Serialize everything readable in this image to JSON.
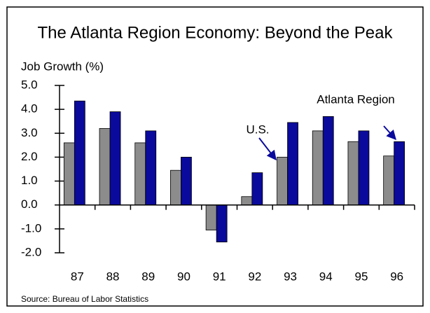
{
  "chart_data": {
    "type": "bar",
    "title": "The Atlanta Region Economy: Beyond the Peak",
    "y_label": "Job Growth (%)",
    "source": "Source:  Bureau of Labor Statistics",
    "categories": [
      "87",
      "88",
      "89",
      "90",
      "91",
      "92",
      "93",
      "94",
      "95",
      "96"
    ],
    "series": [
      {
        "name": "U.S.",
        "color": "#8c8c8c",
        "values": [
          2.6,
          3.2,
          2.6,
          1.45,
          -1.05,
          0.35,
          2.0,
          3.1,
          2.65,
          2.05
        ]
      },
      {
        "name": "Atlanta Region",
        "color": "#0a0a9c",
        "values": [
          4.35,
          3.9,
          3.1,
          2.0,
          -1.55,
          1.35,
          3.45,
          3.7,
          3.1,
          2.65
        ]
      }
    ],
    "ylim": [
      -2,
      5
    ],
    "yticks": [
      {
        "value": -2,
        "label": "-2.0"
      },
      {
        "value": -1,
        "label": "-1.0"
      },
      {
        "value": 0,
        "label": "0.0"
      },
      {
        "value": 1,
        "label": "1.0"
      },
      {
        "value": 2,
        "label": "2.0"
      },
      {
        "value": 3,
        "label": "3.0"
      },
      {
        "value": 4,
        "label": "4.0"
      },
      {
        "value": 5,
        "label": "5.0"
      }
    ],
    "grid": false
  }
}
